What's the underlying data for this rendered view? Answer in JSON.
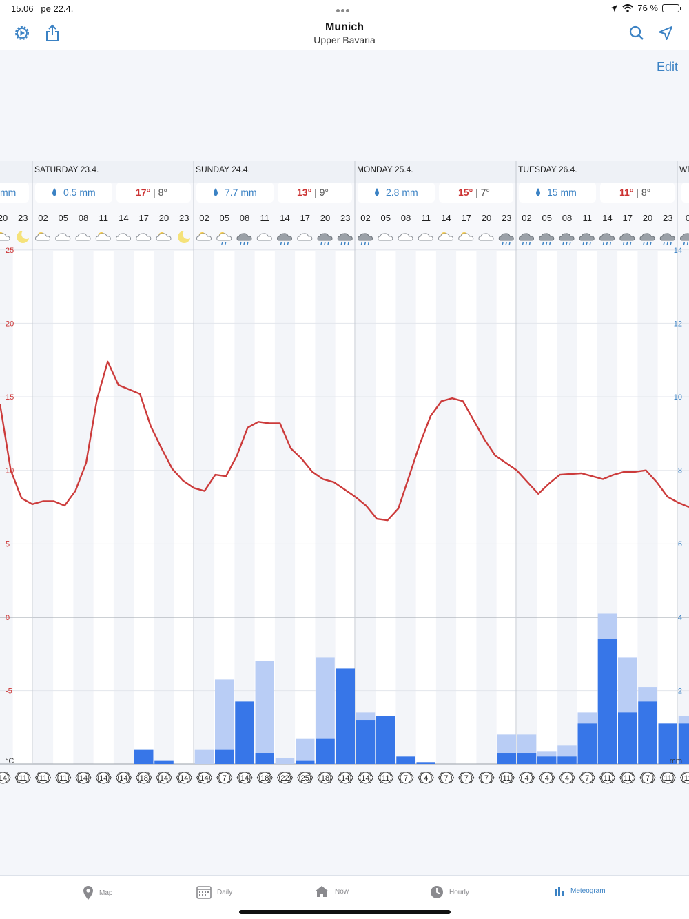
{
  "status": {
    "time": "15.06",
    "date": "pe 22.4.",
    "battery": "76 %",
    "battery_level": 0.76
  },
  "nav": {
    "title": "Munich",
    "subtitle": "Upper Bavaria"
  },
  "edit_label": "Edit",
  "days": [
    {
      "label": "SATURDAY 23.4.",
      "precip": "0.5 mm",
      "high": "17°",
      "low": "| 8°"
    },
    {
      "label": "SUNDAY 24.4.",
      "precip": "7.7 mm",
      "high": "13°",
      "low": "| 9°"
    },
    {
      "label": "MONDAY 25.4.",
      "precip": "2.8 mm",
      "high": "15°",
      "low": "| 7°"
    },
    {
      "label": "TUESDAY 26.4.",
      "precip": "15 mm",
      "high": "11°",
      "low": "| 8°"
    },
    {
      "label": "WE"
    }
  ],
  "partial_precip_unit": "mm",
  "hours": [
    "20",
    "23",
    "02",
    "05",
    "08",
    "11",
    "14",
    "17",
    "20",
    "23",
    "02",
    "05",
    "08",
    "11",
    "14",
    "17",
    "20",
    "23",
    "02",
    "05",
    "08",
    "11",
    "14",
    "17",
    "20",
    "23",
    "02",
    "05",
    "08",
    "11",
    "14",
    "17",
    "20",
    "23",
    "0"
  ],
  "icons": [
    "sun-cloud",
    "moon",
    "sun-cloud",
    "cloud",
    "cloud",
    "sun-cloud",
    "cloud",
    "cloud",
    "sun-cloud",
    "moon",
    "sun-cloud",
    "sun-cloud-drizzle",
    "rain-cloud",
    "cloud",
    "rain-cloud",
    "cloud",
    "rain-cloud",
    "rain-cloud",
    "rain-cloud",
    "cloud",
    "cloud",
    "cloud",
    "sun-cloud",
    "sun-cloud",
    "cloud",
    "rain-cloud",
    "rain-cloud",
    "rain-cloud",
    "rain-cloud",
    "rain-cloud",
    "rain-cloud",
    "rain-cloud",
    "rain-cloud",
    "rain-cloud",
    "rain-cloud"
  ],
  "wind": [
    "14",
    "11",
    "11",
    "11",
    "14",
    "14",
    "14",
    "18",
    "14",
    "14",
    "14",
    "7",
    "14",
    "18",
    "22",
    "25",
    "18",
    "14",
    "14",
    "11",
    "7",
    "4",
    "7",
    "7",
    "7",
    "11",
    "4",
    "4",
    "4",
    "7",
    "11",
    "11",
    "7",
    "11",
    "11"
  ],
  "axis": {
    "temp_ticks": [
      "25",
      "20",
      "15",
      "10",
      "5",
      "0",
      "-5",
      "°C"
    ],
    "precip_ticks": [
      "14",
      "12",
      "10",
      "8",
      "6",
      "4",
      "2",
      "mm"
    ]
  },
  "chart_data": {
    "type": "line+bar",
    "temperature_c": [
      14.5,
      10,
      8.1,
      7.7,
      7.9,
      7.9,
      7.6,
      8.6,
      10.5,
      14.8,
      17.4,
      15.8,
      15.5,
      15.2,
      13.0,
      11.5,
      10.1,
      9.3,
      8.8,
      8.6,
      9.7,
      9.6,
      11.0,
      12.9,
      13.3,
      13.2,
      13.2,
      11.5,
      10.8,
      9.9,
      9.4,
      9.2,
      8.7,
      8.2,
      7.6,
      6.7,
      6.6,
      7.4,
      9.6,
      11.8,
      13.7,
      14.7,
      14.9,
      14.7,
      13.4,
      12.1,
      11.0,
      10.5,
      10.0,
      9.2,
      8.4,
      9.1,
      9.7,
      9.75,
      9.8,
      9.6,
      9.4,
      9.7,
      9.9,
      9.9,
      10,
      9.2,
      8.2,
      7.8,
      7.5
    ],
    "precip_mm": [
      0,
      0,
      0,
      0,
      0,
      0,
      0,
      0.4,
      0.1,
      0,
      0,
      0.4,
      1.7,
      0.3,
      0,
      0.1,
      0.7,
      2.6,
      1.2,
      1.3,
      0.2,
      0.05,
      0,
      0,
      0,
      0.3,
      0.3,
      0.2,
      0.2,
      1.1,
      3.4,
      1.4,
      1.7,
      1.1,
      1.1
    ],
    "precip_max_mm": [
      0,
      0,
      0,
      0,
      0,
      0,
      0,
      0.4,
      0.1,
      0,
      0.4,
      2.3,
      0.4,
      2.8,
      0.15,
      0.7,
      2.9,
      1.4,
      1.4,
      0.25,
      0.05,
      0.05,
      0,
      0,
      0,
      0.8,
      0.8,
      0.35,
      0.5,
      1.4,
      4.1,
      2.9,
      2.1,
      1.1,
      1.3
    ],
    "temp_range": [
      -8.5,
      25
    ],
    "precip_range": [
      0,
      14
    ]
  }
}
